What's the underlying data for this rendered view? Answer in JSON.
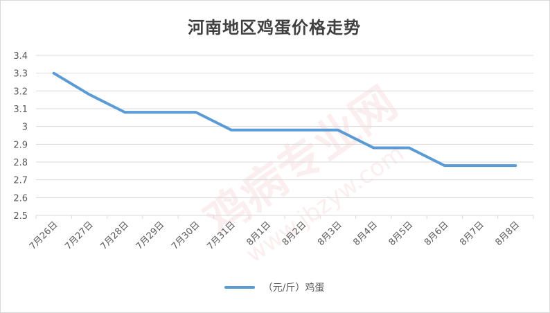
{
  "chart_data": {
    "type": "line",
    "title": "河南地区鸡蛋价格走势",
    "categories": [
      "7月26日",
      "7月27日",
      "7月28日",
      "7月29日",
      "7月30日",
      "7月31日",
      "8月1日",
      "8月2日",
      "8月3日",
      "8月4日",
      "8月5日",
      "8月6日",
      "8月7日",
      "8月8日"
    ],
    "series": [
      {
        "name": "（元/斤）鸡蛋",
        "values": [
          3.3,
          3.18,
          3.08,
          3.08,
          3.08,
          2.98,
          2.98,
          2.98,
          2.98,
          2.88,
          2.88,
          2.78,
          2.78,
          2.78
        ]
      }
    ],
    "ylim": [
      2.5,
      3.4
    ],
    "yticks": [
      "2.5",
      "2.6",
      "2.7",
      "2.8",
      "2.9",
      "3",
      "3.1",
      "3.2",
      "3.3",
      "3.4"
    ],
    "grid": true,
    "legend_position": "bottom",
    "line_color": "#5b9bd5"
  }
}
